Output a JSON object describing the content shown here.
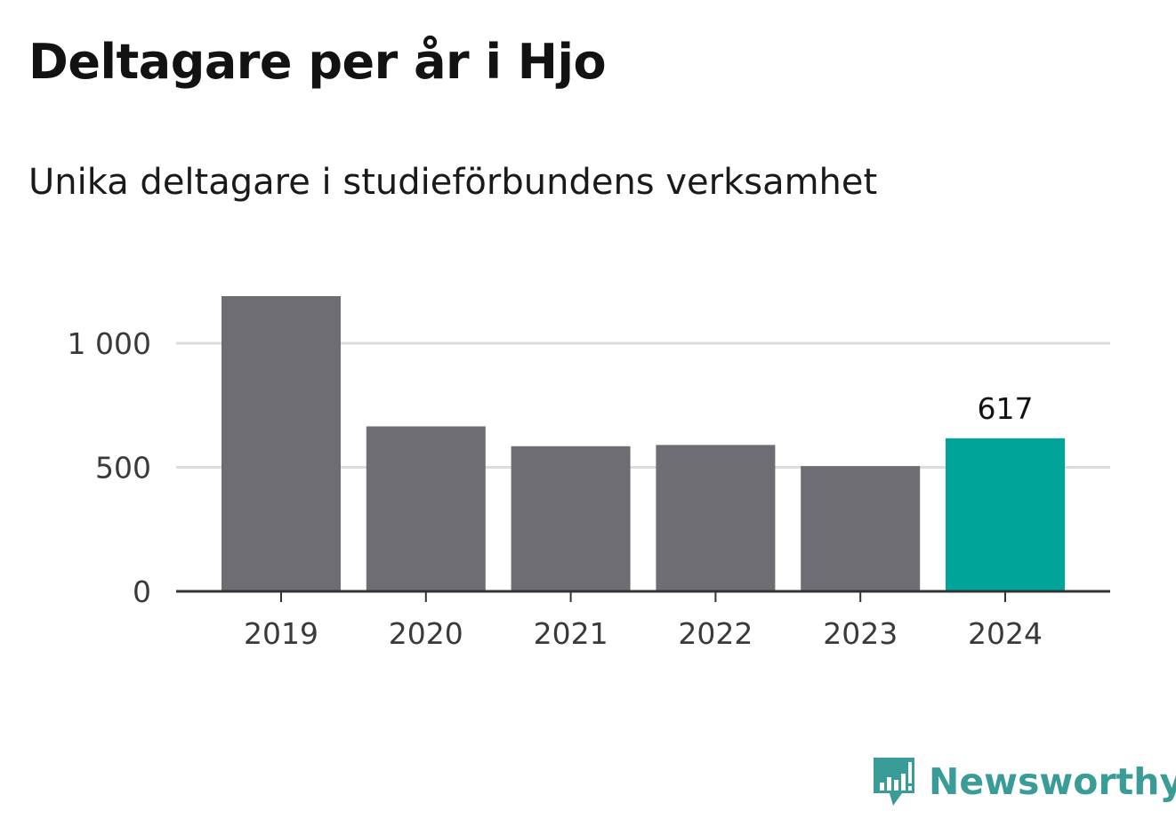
{
  "header": {
    "title": "Deltagare per år i Hjo",
    "subtitle": "Unika deltagare i studieförbundens verksamhet"
  },
  "brand": {
    "name": "Newsworthy",
    "icon": "newsworthy-logo-icon",
    "color": "#3a9c96"
  },
  "colors": {
    "bar": "#6e6d73",
    "highlight": "#00a499",
    "grid": "#dcdcdc",
    "axis": "#333333"
  },
  "chart_data": {
    "type": "bar",
    "categories": [
      "2019",
      "2020",
      "2021",
      "2022",
      "2023",
      "2024"
    ],
    "values": [
      1190,
      665,
      585,
      590,
      505,
      617
    ],
    "highlight_index": 5,
    "data_labels": [
      {
        "index": 5,
        "text": "617"
      }
    ],
    "yticks": [
      {
        "value": 0,
        "label": "0"
      },
      {
        "value": 500,
        "label": "500"
      },
      {
        "value": 1000,
        "label": "1 000"
      }
    ],
    "ylim": [
      0,
      1200
    ],
    "grid": true,
    "legend": "none"
  }
}
